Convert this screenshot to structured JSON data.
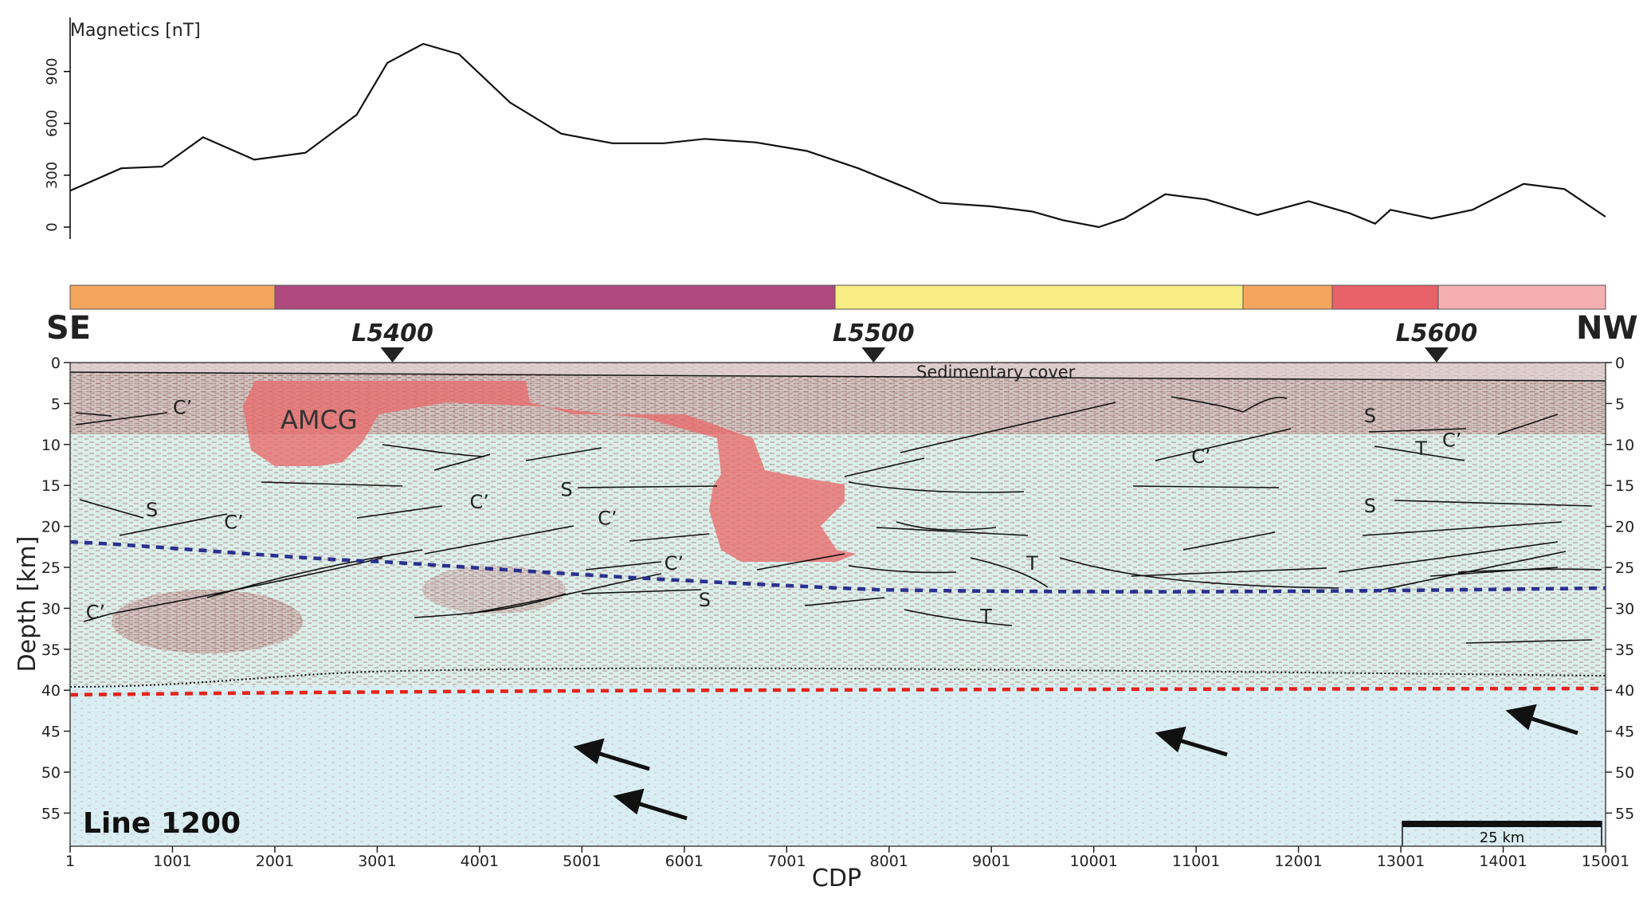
{
  "magnetics": {
    "ylabel": "Magnetics [nT]",
    "yticks": [
      "0",
      "300",
      "600",
      "900"
    ],
    "profile": [
      [
        1,
        210
      ],
      [
        500,
        340
      ],
      [
        900,
        350
      ],
      [
        1300,
        520
      ],
      [
        1800,
        390
      ],
      [
        2300,
        430
      ],
      [
        2800,
        650
      ],
      [
        3100,
        950
      ],
      [
        3450,
        1060
      ],
      [
        3800,
        1000
      ],
      [
        4300,
        720
      ],
      [
        4800,
        540
      ],
      [
        5300,
        485
      ],
      [
        5800,
        485
      ],
      [
        6200,
        510
      ],
      [
        6700,
        490
      ],
      [
        7200,
        440
      ],
      [
        7700,
        340
      ],
      [
        8200,
        220
      ],
      [
        8500,
        140
      ],
      [
        9000,
        120
      ],
      [
        9400,
        90
      ],
      [
        9700,
        40
      ],
      [
        10050,
        0
      ],
      [
        10300,
        50
      ],
      [
        10700,
        190
      ],
      [
        11100,
        160
      ],
      [
        11600,
        70
      ],
      [
        12100,
        150
      ],
      [
        12500,
        80
      ],
      [
        12750,
        20
      ],
      [
        12900,
        100
      ],
      [
        13300,
        50
      ],
      [
        13700,
        100
      ],
      [
        14200,
        250
      ],
      [
        14600,
        220
      ],
      [
        15000,
        60
      ]
    ]
  },
  "units_bar": [
    "#f4a65e",
    "#b04a7e",
    "#f8ec84",
    "#f4a65e",
    "#e96269",
    "#f6afb1"
  ],
  "section": {
    "left_label": "SE",
    "right_label": "NW",
    "markers": [
      {
        "label": "L5400",
        "cdp": 3150
      },
      {
        "label": "L5500",
        "cdp": 7850
      },
      {
        "label": "L5600",
        "cdp": 13350
      }
    ],
    "ylabel": "Depth [km]",
    "yticks": [
      "0",
      "5",
      "10",
      "15",
      "20",
      "25",
      "30",
      "35",
      "40",
      "45",
      "50",
      "55"
    ],
    "xlabel": "CDP",
    "xticks": [
      "1",
      "1001",
      "2001",
      "3001",
      "4001",
      "5001",
      "6001",
      "7001",
      "8001",
      "9001",
      "10001",
      "11001",
      "12001",
      "13001",
      "14001",
      "15001"
    ],
    "sedimentary_cover": "Sedimentary cover",
    "body_label": "AMCG",
    "line_label": "Line 1200",
    "scale_bar": "25 km",
    "annotations": [
      {
        "t": "C’",
        "cdp": 1100,
        "d": 5.5
      },
      {
        "t": "S",
        "cdp": 800,
        "d": 18
      },
      {
        "t": "C’",
        "cdp": 1600,
        "d": 19.5
      },
      {
        "t": "C’",
        "cdp": 4000,
        "d": 17
      },
      {
        "t": "C’",
        "cdp": 5250,
        "d": 19
      },
      {
        "t": "S",
        "cdp": 4850,
        "d": 15.5
      },
      {
        "t": "C’",
        "cdp": 5900,
        "d": 24.5
      },
      {
        "t": "S",
        "cdp": 6200,
        "d": 29
      },
      {
        "t": "C’",
        "cdp": 250,
        "d": 30.5
      },
      {
        "t": "T",
        "cdp": 9400,
        "d": 24.5
      },
      {
        "t": "T",
        "cdp": 8950,
        "d": 31
      },
      {
        "t": "C’",
        "cdp": 11050,
        "d": 11.5
      },
      {
        "t": "S",
        "cdp": 12700,
        "d": 6.5
      },
      {
        "t": "T",
        "cdp": 13200,
        "d": 10.5
      },
      {
        "t": "C’",
        "cdp": 13500,
        "d": 9.5
      },
      {
        "t": "S",
        "cdp": 12700,
        "d": 17.5
      }
    ]
  }
}
